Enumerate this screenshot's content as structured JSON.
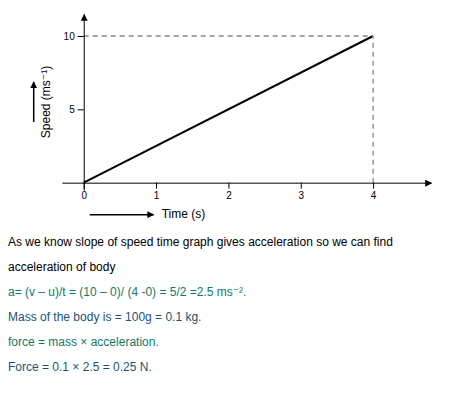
{
  "chart_data": {
    "type": "line",
    "x_label": "Time (s)",
    "y_label": "Speed (ms⁻¹)",
    "xlim": [
      -0.3,
      4.8
    ],
    "ylim": [
      -0.5,
      11.5
    ],
    "xticks": [
      0,
      1,
      2,
      3,
      4
    ],
    "yticks": [
      5,
      10
    ],
    "series": [
      {
        "x": [
          0,
          4
        ],
        "values": [
          0,
          10
        ],
        "color": "#000000",
        "line_style": "solid"
      },
      {
        "x": [
          0,
          4
        ],
        "values": [
          10,
          10
        ],
        "color": "#888888",
        "line_style": "dashed"
      },
      {
        "x": [
          4,
          4
        ],
        "values": [
          0,
          10
        ],
        "color": "#888888",
        "line_style": "dashed"
      }
    ],
    "annotations": [
      {
        "text": "As we know slope of speed time graph gives acceleration so we can find",
        "color": "#000000"
      },
      {
        "text": "acceleration of body",
        "color": "#000000"
      },
      {
        "text": "a=  (v – u)/t = (10 – 0)/ (4 -0) = 5/2 =2.5 ms⁻².",
        "color": "#117a65"
      },
      {
        "text": "Mass of the body is = 100g = 0.1 kg.",
        "color": "#1a5276"
      },
      {
        "text": "force  = mass × acceleration.",
        "color": "#117a65"
      },
      {
        "text": "Force = 0.1 × 2.5 = 0.25 N.",
        "color": "#1a5276"
      }
    ]
  }
}
